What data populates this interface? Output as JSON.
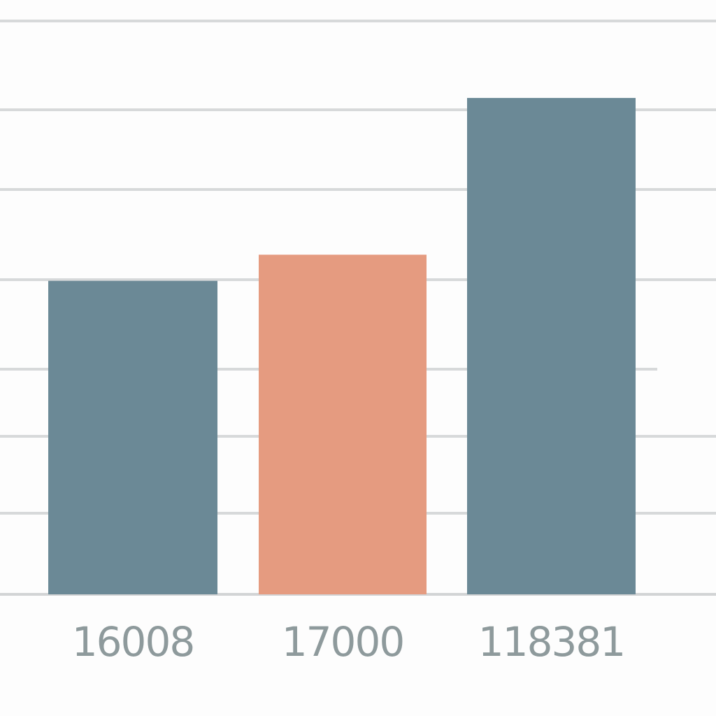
{
  "chart_data": {
    "type": "bar",
    "categories": [
      "16008",
      "17000",
      "118381"
    ],
    "values": [
      3.6,
      3.9,
      5.7
    ],
    "ylim": [
      0,
      6.6
    ],
    "grid": true,
    "legend": "none",
    "colors": {
      "primary": "#6b8996",
      "highlight": "#e59b80",
      "grid": "#d7d9da",
      "label": "#8e9a9c"
    },
    "highlight_index": 1
  }
}
